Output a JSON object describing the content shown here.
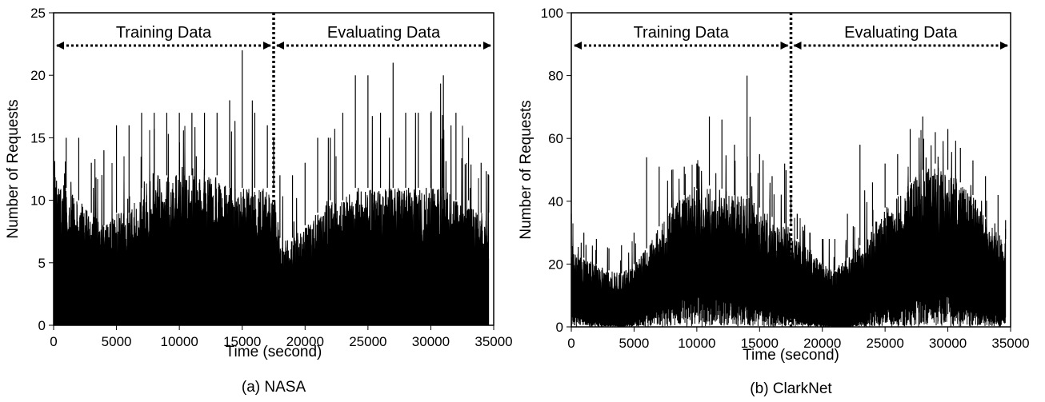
{
  "chart_data": [
    {
      "type": "line",
      "caption": "(a) NASA",
      "xlabel": "Time (second)",
      "ylabel": "Number of Requests",
      "xlim": [
        0,
        35000
      ],
      "ylim": [
        0,
        25
      ],
      "xticks": [
        "0",
        "5000",
        "10000",
        "15000",
        "20000",
        "25000",
        "30000",
        "35000"
      ],
      "yticks": [
        "0",
        "5",
        "10",
        "15",
        "20",
        "25"
      ],
      "grid": false,
      "split_x": 17500,
      "regions": [
        "Training Data",
        "Evaluating Data"
      ],
      "series": [
        {
          "x": [
            0,
            1000,
            2000,
            3000,
            4000,
            5000,
            6000,
            7000,
            8000,
            9000,
            10000,
            11000,
            12000,
            13000,
            14000,
            15000,
            16000,
            17000,
            17500,
            18000,
            19000,
            20000,
            21000,
            22000,
            23000,
            24000,
            25000,
            26000,
            27000,
            28000,
            29000,
            30000,
            31000,
            32000,
            33000,
            34000,
            34600
          ],
          "upper": [
            12,
            11,
            10,
            9,
            8,
            9,
            9,
            11,
            12,
            12,
            12,
            12,
            12,
            12,
            11,
            11,
            11,
            11,
            11,
            7,
            7,
            8,
            9,
            10,
            10,
            11,
            11,
            11,
            11,
            11,
            11,
            11,
            11,
            10,
            10,
            9,
            9
          ],
          "peaks": [
            14,
            15,
            15,
            13,
            14,
            16,
            16,
            17,
            17,
            17,
            17,
            17,
            17,
            17,
            18,
            22,
            17,
            16,
            15,
            12,
            12,
            13,
            15,
            15,
            17,
            20,
            20,
            17,
            21,
            17,
            17,
            17,
            20,
            17,
            15,
            13,
            12
          ],
          "lower": [
            0,
            0,
            0,
            0,
            0,
            0,
            0,
            0,
            0,
            0,
            0,
            0,
            0,
            0,
            0,
            0,
            0,
            0,
            0,
            0,
            0,
            0,
            0,
            0,
            0,
            0,
            0,
            0,
            0,
            0,
            0,
            0,
            0,
            0,
            0,
            0,
            0
          ]
        }
      ]
    },
    {
      "type": "line",
      "caption": "(b) ClarkNet",
      "xlabel": "Time (second)",
      "ylabel": "Number of Requests",
      "xlim": [
        0,
        35000
      ],
      "ylim": [
        0,
        100
      ],
      "xticks": [
        "0",
        "5000",
        "10000",
        "15000",
        "20000",
        "25000",
        "30000",
        "35000"
      ],
      "yticks": [
        "0",
        "20",
        "40",
        "60",
        "80",
        "100"
      ],
      "grid": false,
      "split_x": 17500,
      "regions": [
        "Training Data",
        "Evaluating Data"
      ],
      "series": [
        {
          "x": [
            0,
            1000,
            2000,
            3000,
            4000,
            5000,
            6000,
            7000,
            8000,
            9000,
            10000,
            11000,
            12000,
            13000,
            14000,
            15000,
            16000,
            17000,
            17500,
            18000,
            19000,
            20000,
            21000,
            22000,
            23000,
            24000,
            25000,
            26000,
            27000,
            28000,
            29000,
            30000,
            31000,
            32000,
            33000,
            34000,
            34600
          ],
          "upper": [
            25,
            22,
            20,
            18,
            17,
            20,
            25,
            32,
            38,
            42,
            44,
            45,
            44,
            42,
            42,
            38,
            35,
            33,
            32,
            28,
            24,
            20,
            18,
            22,
            26,
            32,
            38,
            42,
            46,
            50,
            52,
            50,
            46,
            42,
            35,
            30,
            28
          ],
          "peaks": [
            36,
            30,
            28,
            25,
            26,
            30,
            54,
            51,
            50,
            51,
            52,
            67,
            66,
            58,
            80,
            55,
            48,
            52,
            42,
            36,
            30,
            28,
            28,
            36,
            58,
            46,
            52,
            55,
            63,
            67,
            62,
            63,
            57,
            53,
            48,
            42,
            34
          ],
          "lower": [
            5,
            3,
            2,
            1,
            0,
            2,
            4,
            6,
            8,
            10,
            10,
            10,
            10,
            8,
            8,
            6,
            5,
            4,
            4,
            3,
            2,
            1,
            0,
            0,
            2,
            5,
            7,
            8,
            9,
            12,
            12,
            12,
            10,
            8,
            6,
            5,
            4
          ]
        }
      ]
    }
  ]
}
